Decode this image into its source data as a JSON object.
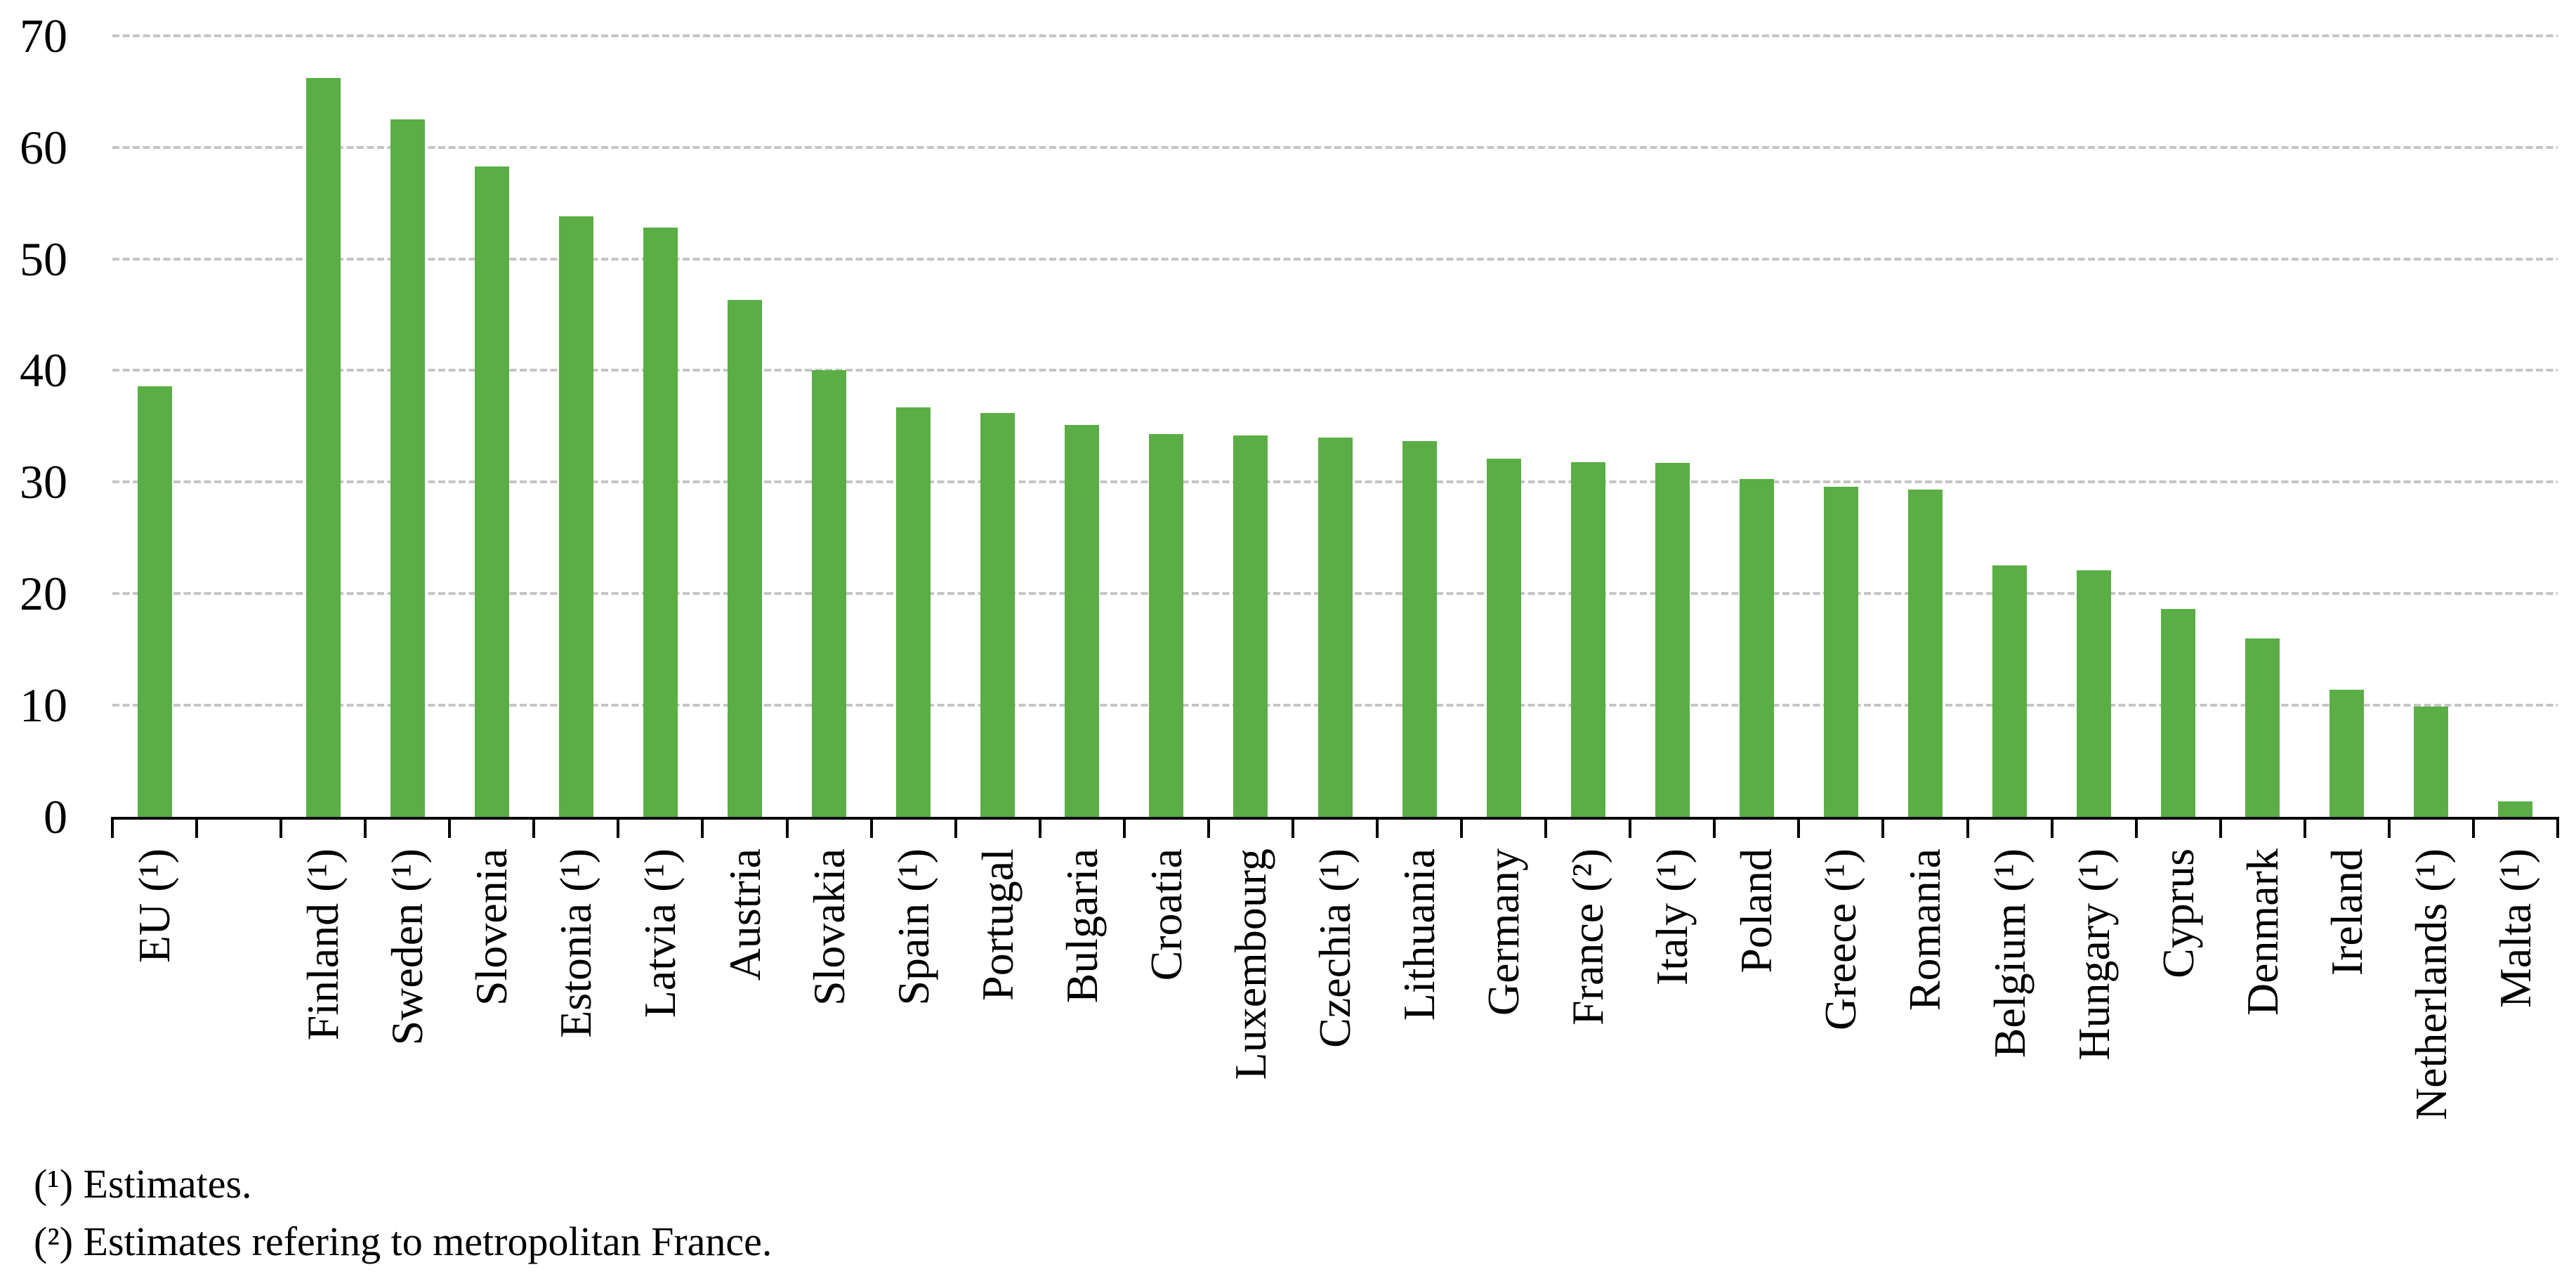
{
  "chart_data": {
    "type": "bar",
    "title": "",
    "unit": "%",
    "categories": [
      "EU (¹)",
      "Finland (¹)",
      "Sweden (¹)",
      "Slovenia",
      "Estonia (¹)",
      "Latvia (¹)",
      "Austria",
      "Slovakia",
      "Spain (¹)",
      "Portugal",
      "Bulgaria",
      "Croatia",
      "Luxembourg",
      "Czechia (¹)",
      "Lithuania",
      "Germany",
      "France (²)",
      "Italy (¹)",
      "Poland",
      "Greece (¹)",
      "Romania",
      "Belgium (¹)",
      "Hungary (¹)",
      "Cyprus",
      "Denmark",
      "Ireland",
      "Netherlands (¹)",
      "Malta (¹)"
    ],
    "values": [
      38.6,
      66.2,
      62.5,
      58.3,
      53.8,
      52.8,
      46.3,
      40.0,
      36.7,
      36.2,
      35.1,
      34.3,
      34.2,
      34.0,
      33.7,
      32.1,
      31.8,
      31.7,
      30.3,
      29.6,
      29.3,
      22.5,
      22.1,
      18.6,
      16.0,
      11.4,
      9.9,
      1.4
    ],
    "yticks": [
      0,
      10,
      20,
      30,
      40,
      50,
      60,
      70
    ],
    "ylim": [
      0,
      70
    ],
    "xlabel": "",
    "ylabel": "",
    "grid": "dashed-horizontal",
    "legend": "none",
    "gap_after_first_category": true,
    "bar_color": "#5BAE45",
    "gridline_color": "#C5C5C5",
    "axis_color": "#000000",
    "footnotes": [
      "(¹) Estimates.",
      "(²) Estimates refering to metropolitan France."
    ]
  }
}
